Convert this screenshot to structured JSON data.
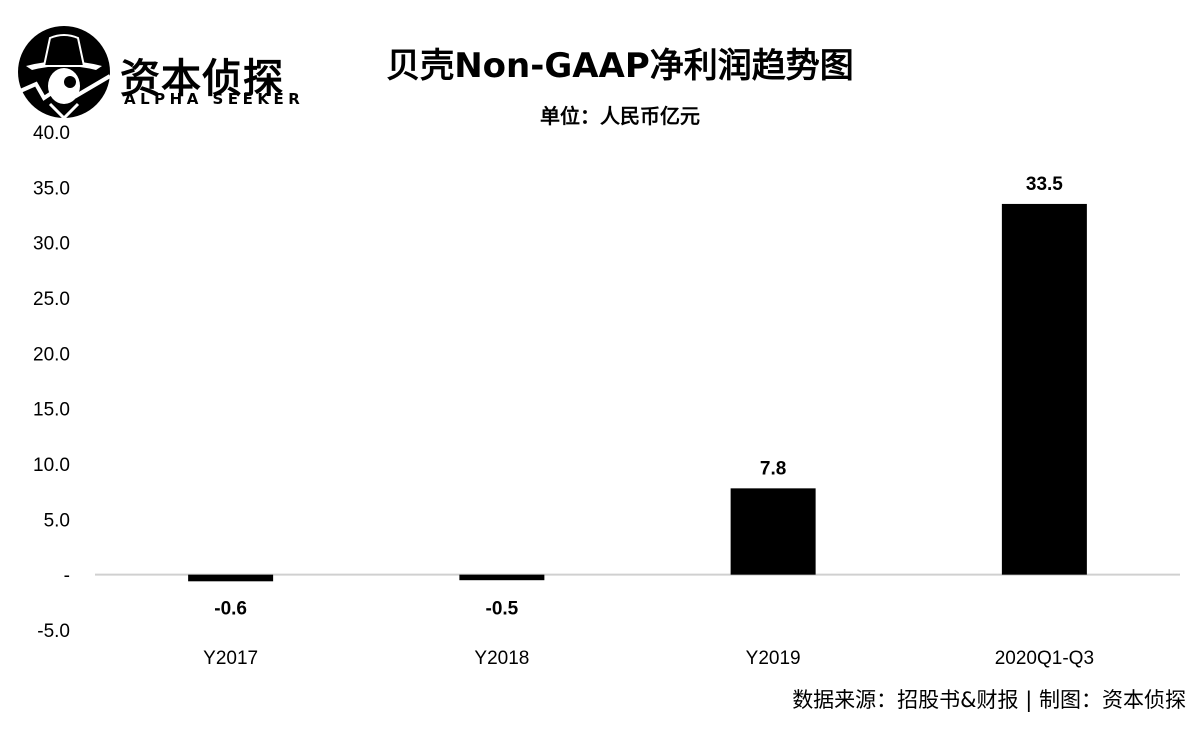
{
  "brand": {
    "name_cn": "资本侦探",
    "name_en": "ALPHA SEEKER"
  },
  "chart_data": {
    "type": "bar",
    "title": "贝壳Non-GAAP净利润趋势图",
    "subtitle": "单位：人民币亿元",
    "categories": [
      "Y2017",
      "Y2018",
      "Y2019",
      "2020Q1-Q3"
    ],
    "values": [
      -0.6,
      -0.5,
      7.8,
      33.5
    ],
    "data_labels": [
      "-0.6",
      "-0.5",
      "7.8",
      "33.5"
    ],
    "ylim": [
      -5,
      40
    ],
    "yticks": [
      -5,
      0,
      5,
      10,
      15,
      20,
      25,
      30,
      35,
      40
    ],
    "ytick_labels": [
      "-5.0",
      "-",
      "5.0",
      "10.0",
      "15.0",
      "20.0",
      "25.0",
      "30.0",
      "35.0",
      "40.0"
    ],
    "bar_color": "#000000",
    "grid": false,
    "legend": "none"
  },
  "source": "数据来源：招股书&财报 | 制图：资本侦探"
}
